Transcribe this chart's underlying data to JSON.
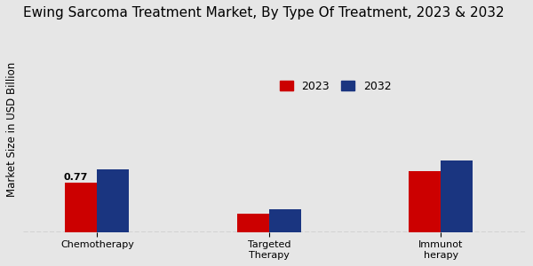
{
  "title": "Ewing Sarcoma Treatment Market, By Type Of Treatment, 2023 & 2032",
  "ylabel": "Market Size in USD Billion",
  "categories": [
    "Chemotherapy\n",
    "Targeted\nTherapy",
    "Immunot\nherapy"
  ],
  "values_2023": [
    0.77,
    0.28,
    0.95
  ],
  "values_2032": [
    0.98,
    0.36,
    1.12
  ],
  "color_2023": "#cc0000",
  "color_2032": "#1a3580",
  "background_color": "#e6e6e6",
  "bar_label_2023": "0.77",
  "legend_labels": [
    "2023",
    "2032"
  ],
  "ylim": [
    0,
    3.2
  ],
  "bar_width": 0.28,
  "group_positions": [
    1.0,
    2.5,
    4.0
  ],
  "title_fontsize": 11,
  "ylabel_fontsize": 8.5,
  "tick_fontsize": 8,
  "legend_fontsize": 9
}
